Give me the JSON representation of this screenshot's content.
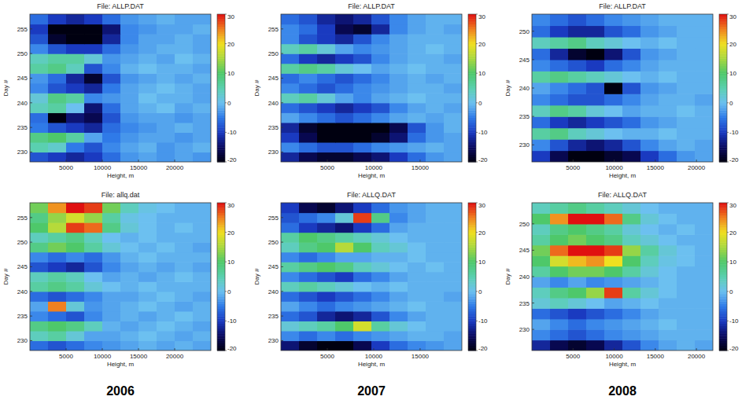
{
  "chart_data": [
    {
      "type": "heatmap",
      "title": "File: ALLP.DAT",
      "x_label": "Height, m",
      "y_label": "Day #",
      "xlim": [
        0,
        25000
      ],
      "xticks": [
        5000,
        10000,
        15000,
        20000
      ],
      "ylim": [
        228,
        258
      ],
      "yticks": [
        230,
        235,
        240,
        245,
        250,
        255
      ],
      "colorbar_range": [
        -20,
        30
      ],
      "colorbar_ticks": [
        -20,
        -10,
        0,
        10,
        20,
        30
      ],
      "cells": [
        [
          -8,
          -10,
          -12,
          -10,
          -6,
          -3,
          -2,
          -3,
          -2,
          -3
        ],
        [
          5,
          3,
          -5,
          -8,
          -4,
          -2,
          -1,
          -3,
          -2,
          -1
        ],
        [
          8,
          10,
          6,
          -2,
          -5,
          -3,
          -2,
          -2,
          -3,
          -2
        ],
        [
          -5,
          -8,
          -10,
          -12,
          -6,
          -4,
          -3,
          -2,
          -1,
          -2
        ],
        [
          -6,
          -20,
          -14,
          -16,
          -8,
          -3,
          -2,
          -2,
          -3,
          -2
        ],
        [
          4,
          6,
          0,
          -14,
          -6,
          -2,
          -1,
          0,
          -2,
          -1
        ],
        [
          2,
          8,
          6,
          -4,
          -3,
          -2,
          0,
          -1,
          -1,
          -2
        ],
        [
          -4,
          -8,
          -10,
          -12,
          -5,
          -2,
          -1,
          0,
          -1,
          -2
        ],
        [
          -3,
          -6,
          -12,
          -18,
          -8,
          -3,
          -2,
          -1,
          -2,
          -1
        ],
        [
          6,
          8,
          4,
          -8,
          -4,
          -1,
          0,
          -1,
          -1,
          -2
        ],
        [
          4,
          6,
          6,
          2,
          -3,
          -2,
          -1,
          -2,
          0,
          -1
        ],
        [
          -4,
          -8,
          -10,
          -10,
          -6,
          -3,
          -2,
          -1,
          -1,
          -2
        ],
        [
          -8,
          -18,
          -20,
          -20,
          -12,
          -4,
          -2,
          -2,
          -1,
          -2
        ],
        [
          -10,
          -20,
          -20,
          -20,
          -14,
          -4,
          -3,
          -2,
          -2,
          -1
        ],
        [
          -6,
          -10,
          -12,
          -10,
          -6,
          -3,
          -2,
          -1,
          -2,
          -2
        ]
      ]
    },
    {
      "type": "heatmap",
      "title": "File: ALLP.DAT",
      "x_label": "Height, m",
      "y_label": "Day #",
      "xlim": [
        0,
        19500
      ],
      "xticks": [
        5000,
        10000,
        15000
      ],
      "ylim": [
        228,
        258
      ],
      "yticks": [
        230,
        235,
        240,
        245,
        250,
        255
      ],
      "colorbar_range": [
        -20,
        30
      ],
      "colorbar_ticks": [
        -20,
        -10,
        0,
        10,
        20,
        30
      ],
      "cells": [
        [
          -12,
          -16,
          -18,
          -18,
          -16,
          -14,
          -10,
          -6,
          -3,
          -2
        ],
        [
          -4,
          -6,
          -8,
          -8,
          -6,
          -4,
          -3,
          -2,
          -1,
          -2
        ],
        [
          -10,
          -16,
          -20,
          -20,
          -20,
          -18,
          -14,
          -6,
          -3,
          -2
        ],
        [
          -12,
          -18,
          -20,
          -20,
          -20,
          -20,
          -16,
          -8,
          -3,
          -1
        ],
        [
          -2,
          -4,
          -6,
          -8,
          -6,
          -4,
          -2,
          -1,
          -2,
          -1
        ],
        [
          -6,
          -8,
          -10,
          -12,
          -10,
          -8,
          -4,
          -2,
          -1,
          -2
        ],
        [
          4,
          6,
          2,
          -2,
          -4,
          -2,
          -1,
          0,
          -1,
          -1
        ],
        [
          -4,
          -6,
          -8,
          -6,
          -4,
          -3,
          -2,
          -1,
          -1,
          -2
        ],
        [
          -6,
          -4,
          -6,
          -8,
          -6,
          -4,
          -2,
          -1,
          -2,
          -1
        ],
        [
          6,
          8,
          6,
          2,
          0,
          -2,
          -1,
          0,
          -1,
          -1
        ],
        [
          -6,
          -10,
          -12,
          -10,
          -8,
          -4,
          -2,
          -1,
          -1,
          -2
        ],
        [
          4,
          6,
          2,
          -2,
          -4,
          -3,
          -2,
          -1,
          0,
          -1
        ],
        [
          -4,
          -8,
          -10,
          -12,
          -8,
          -4,
          -2,
          -1,
          -1,
          -1
        ],
        [
          -4,
          -6,
          -10,
          -16,
          -18,
          -12,
          -4,
          -2,
          -1,
          -2
        ],
        [
          -6,
          -8,
          -12,
          -14,
          -12,
          -8,
          -4,
          -2,
          -1,
          -1
        ]
      ]
    },
    {
      "type": "heatmap",
      "title": "File: ALLP.DAT",
      "x_label": "Height, m",
      "y_label": "Day #",
      "xlim": [
        0,
        22000
      ],
      "xticks": [
        5000,
        10000,
        15000,
        20000
      ],
      "ylim": [
        227,
        253
      ],
      "yticks": [
        230,
        235,
        240,
        245,
        250
      ],
      "colorbar_range": [
        -20,
        30
      ],
      "colorbar_ticks": [
        -20,
        -10,
        0,
        10,
        20,
        30
      ],
      "cells": [
        [
          -10,
          -16,
          -20,
          -20,
          -18,
          -16,
          -10,
          -6,
          -3,
          -2
        ],
        [
          -4,
          -8,
          -12,
          -14,
          -12,
          -8,
          -4,
          -2,
          -1,
          -2
        ],
        [
          6,
          8,
          4,
          2,
          0,
          -1,
          -1,
          0,
          -1,
          -1
        ],
        [
          -6,
          -10,
          -12,
          -10,
          -8,
          -6,
          -3,
          -2,
          -1,
          -1
        ],
        [
          4,
          8,
          6,
          2,
          0,
          -2,
          -1,
          -1,
          0,
          -1
        ],
        [
          -4,
          -6,
          -8,
          -8,
          -6,
          -4,
          -2,
          -1,
          -1,
          -2
        ],
        [
          -2,
          -4,
          -6,
          -8,
          -20,
          -8,
          -3,
          -2,
          -1,
          -1
        ],
        [
          6,
          8,
          6,
          4,
          2,
          0,
          -1,
          0,
          -1,
          -1
        ],
        [
          -4,
          -6,
          -8,
          -10,
          -6,
          -4,
          -2,
          -1,
          -1,
          -1
        ],
        [
          -6,
          -12,
          -18,
          -20,
          -14,
          -8,
          -3,
          -2,
          -1,
          -1
        ],
        [
          4,
          6,
          8,
          4,
          2,
          0,
          -1,
          0,
          -1,
          -1
        ],
        [
          -6,
          -10,
          -12,
          -12,
          -8,
          -6,
          -3,
          -2,
          -1,
          -1
        ],
        [
          -4,
          -6,
          -8,
          -6,
          -4,
          -3,
          -2,
          -1,
          -1,
          -1
        ]
      ]
    },
    {
      "type": "heatmap",
      "title": "File: allq.dat",
      "x_label": "Height, m",
      "y_label": "Day #",
      "xlim": [
        0,
        25000
      ],
      "xticks": [
        5000,
        10000,
        15000,
        20000
      ],
      "ylim": [
        228,
        258
      ],
      "yticks": [
        230,
        235,
        240,
        245,
        250,
        255
      ],
      "colorbar_range": [
        -20,
        30
      ],
      "colorbar_ticks": [
        -20,
        -10,
        0,
        10,
        20,
        30
      ],
      "cells": [
        [
          -6,
          -8,
          -6,
          -4,
          -3,
          -2,
          -1,
          -2,
          -1,
          -2
        ],
        [
          4,
          6,
          2,
          -2,
          -2,
          -1,
          0,
          -1,
          -2,
          -1
        ],
        [
          8,
          10,
          8,
          4,
          -1,
          -2,
          -1,
          0,
          -1,
          -2
        ],
        [
          -4,
          -6,
          -8,
          -4,
          -2,
          -1,
          -2,
          -1,
          0,
          -1
        ],
        [
          -2,
          25,
          2,
          -3,
          -2,
          -1,
          0,
          -1,
          -2,
          -1
        ],
        [
          -6,
          -8,
          -6,
          -4,
          -2,
          -2,
          -1,
          0,
          -1,
          -2
        ],
        [
          6,
          8,
          6,
          2,
          0,
          -1,
          0,
          -1,
          -1,
          -1
        ],
        [
          4,
          6,
          4,
          0,
          -2,
          -1,
          -2,
          -1,
          0,
          -1
        ],
        [
          -8,
          -10,
          -12,
          -8,
          -4,
          -2,
          -1,
          -2,
          -1,
          -2
        ],
        [
          -4,
          -6,
          -4,
          -6,
          -3,
          -1,
          0,
          -1,
          -1,
          -1
        ],
        [
          8,
          12,
          10,
          6,
          2,
          0,
          -1,
          0,
          -1,
          -2
        ],
        [
          4,
          6,
          8,
          4,
          0,
          -1,
          0,
          -1,
          -1,
          -1
        ],
        [
          10,
          16,
          28,
          26,
          8,
          2,
          0,
          -1,
          0,
          -1
        ],
        [
          8,
          14,
          18,
          14,
          6,
          1,
          0,
          -1,
          -1,
          -1
        ],
        [
          12,
          24,
          30,
          28,
          12,
          4,
          1,
          0,
          -1,
          -1
        ]
      ]
    },
    {
      "type": "heatmap",
      "title": "File: ALLQ.DAT",
      "x_label": "Height, m",
      "y_label": "Day #",
      "xlim": [
        0,
        19500
      ],
      "xticks": [
        5000,
        10000,
        15000
      ],
      "ylim": [
        228,
        258
      ],
      "yticks": [
        230,
        235,
        240,
        245,
        250,
        255
      ],
      "colorbar_range": [
        -20,
        30
      ],
      "colorbar_ticks": [
        -20,
        -10,
        0,
        10,
        20,
        30
      ],
      "cells": [
        [
          -14,
          -18,
          -20,
          -20,
          -16,
          -10,
          -6,
          -4,
          -3,
          -2
        ],
        [
          -4,
          -6,
          -4,
          -6,
          -4,
          -3,
          -2,
          -1,
          -1,
          -2
        ],
        [
          2,
          4,
          6,
          10,
          18,
          6,
          2,
          0,
          -1,
          -1
        ],
        [
          -6,
          -8,
          -12,
          -14,
          -12,
          -8,
          -4,
          -2,
          -1,
          -1
        ],
        [
          -2,
          -4,
          -6,
          -4,
          -3,
          -2,
          -1,
          0,
          -1,
          -1
        ],
        [
          -6,
          -8,
          -10,
          -8,
          -6,
          -4,
          -2,
          -1,
          -1,
          -2
        ],
        [
          4,
          6,
          4,
          2,
          0,
          -1,
          0,
          -1,
          -1,
          -1
        ],
        [
          -4,
          -6,
          -8,
          -10,
          -6,
          -4,
          -2,
          -1,
          -1,
          -1
        ],
        [
          6,
          8,
          10,
          8,
          4,
          2,
          0,
          -1,
          0,
          -1
        ],
        [
          -4,
          -6,
          -4,
          -2,
          -2,
          -1,
          -1,
          0,
          -1,
          -1
        ],
        [
          4,
          8,
          10,
          16,
          10,
          4,
          2,
          0,
          -1,
          -1
        ],
        [
          6,
          10,
          8,
          6,
          4,
          2,
          0,
          -1,
          -1,
          -1
        ],
        [
          -6,
          -10,
          -12,
          -14,
          -10,
          -6,
          -2,
          -1,
          -1,
          -1
        ],
        [
          -8,
          -6,
          -4,
          2,
          28,
          8,
          -4,
          -2,
          -1,
          -1
        ],
        [
          -10,
          -16,
          -18,
          -14,
          -10,
          -6,
          -3,
          -2,
          -1,
          -1
        ]
      ]
    },
    {
      "type": "heatmap",
      "title": "File: ALLQ.DAT",
      "x_label": "Height, m",
      "y_label": "Day #",
      "xlim": [
        0,
        22000
      ],
      "xticks": [
        5000,
        10000,
        15000,
        20000
      ],
      "ylim": [
        226,
        254
      ],
      "yticks": [
        230,
        235,
        240,
        245,
        250
      ],
      "colorbar_range": [
        -20,
        30
      ],
      "colorbar_ticks": [
        -20,
        -10,
        0,
        10,
        20,
        30
      ],
      "cells": [
        [
          -12,
          -16,
          -18,
          -16,
          -12,
          -8,
          -4,
          -2,
          -1,
          -2
        ],
        [
          -4,
          -6,
          -8,
          -6,
          -4,
          -3,
          -2,
          -1,
          -1,
          -1
        ],
        [
          -2,
          -4,
          -6,
          -4,
          -3,
          -2,
          -1,
          0,
          -1,
          -1
        ],
        [
          -6,
          -8,
          -10,
          -8,
          -6,
          -4,
          -2,
          -1,
          -1,
          -1
        ],
        [
          2,
          4,
          2,
          0,
          -2,
          -1,
          0,
          -1,
          -1,
          -1
        ],
        [
          4,
          8,
          10,
          14,
          28,
          6,
          2,
          0,
          -1,
          -1
        ],
        [
          -2,
          -4,
          -2,
          -4,
          -3,
          -2,
          -1,
          0,
          -1,
          -1
        ],
        [
          6,
          10,
          12,
          12,
          10,
          6,
          2,
          0,
          -1,
          -1
        ],
        [
          10,
          18,
          22,
          24,
          20,
          10,
          4,
          1,
          0,
          -1
        ],
        [
          12,
          26,
          30,
          30,
          28,
          14,
          6,
          2,
          0,
          -1
        ],
        [
          6,
          10,
          12,
          10,
          8,
          4,
          2,
          0,
          -1,
          -1
        ],
        [
          4,
          8,
          10,
          8,
          6,
          2,
          0,
          -1,
          0,
          -1
        ],
        [
          10,
          24,
          30,
          30,
          26,
          8,
          2,
          0,
          -1,
          -1
        ],
        [
          4,
          6,
          8,
          6,
          4,
          2,
          0,
          -1,
          -1,
          -1
        ]
      ]
    }
  ],
  "column_labels": [
    "2006",
    "2007",
    "2008"
  ]
}
